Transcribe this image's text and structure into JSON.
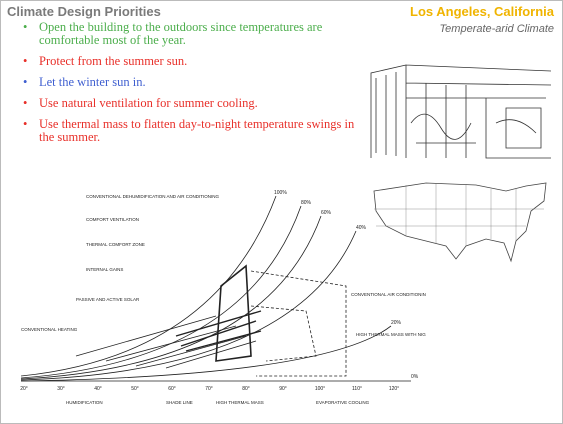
{
  "header": {
    "title": "Climate Design Priorities",
    "location": "Los Angeles, California",
    "climate": "Temperate-arid Climate"
  },
  "bullets": [
    {
      "text": "Open the building to the outdoors since temperatures are comfortable most of the year.",
      "color": "#4cae4c"
    },
    {
      "text": "Protect from the summer sun.",
      "color": "#e8302a"
    },
    {
      "text": "Let the winter sun in.",
      "color": "#3f5fd0"
    },
    {
      "text": "Use natural ventilation for summer cooling.",
      "color": "#e8302a"
    },
    {
      "text": "Use thermal mass to flatten day-to-night temperature swings in the summer.",
      "color": "#e8302a"
    }
  ],
  "diagram": {
    "labels": [
      "CONVENTIONAL DEHUMIDIFICATION AND AIR CONDITIONING",
      "COMFORT VENTILATION",
      "THERMAL COMFORT ZONE",
      "INTERNAL GAINS",
      "PASSIVE AND ACTIVE SOLAR",
      "CONVENTIONAL HEATING",
      "HUMIDIFICATION",
      "SHADE LINE",
      "HIGH THERMAL MASS",
      "EVAPORATIVE COOLING",
      "CONVENTIONAL AIR CONDITIONING",
      "HIGH THERMAL MASS WITH NIGHT VENTILATION CONVECTIVE COOLING"
    ],
    "humidity": [
      "100%",
      "80%",
      "60%",
      "40%",
      "20%",
      "0%"
    ],
    "temps": [
      "20°",
      "30°",
      "40°",
      "50°",
      "60°",
      "70°",
      "80°",
      "90°",
      "100°",
      "110°",
      "120°"
    ]
  }
}
